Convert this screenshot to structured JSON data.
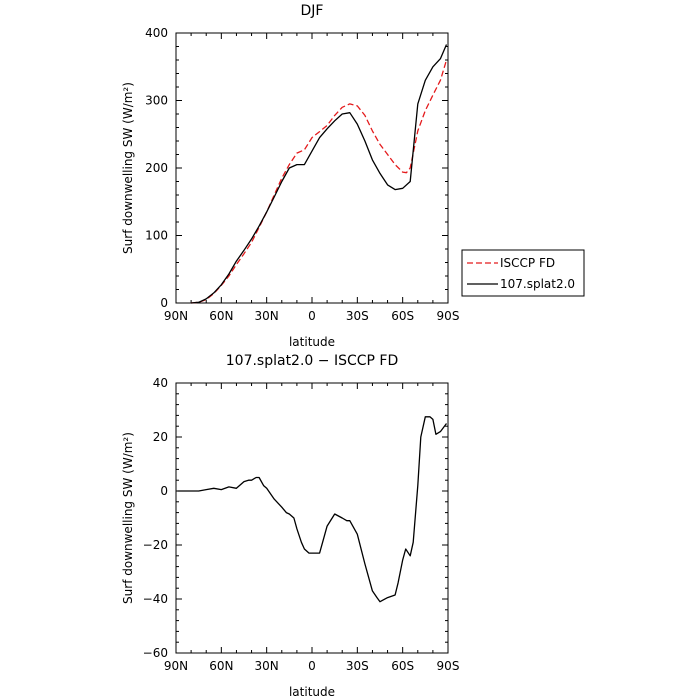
{
  "chart_data": [
    {
      "type": "line",
      "title": "DJF",
      "xlabel": "latitude",
      "ylabel": "Surf downwelling SW (W/m²)",
      "xlim": [
        90,
        -90
      ],
      "ylim": [
        0,
        400
      ],
      "x_ticks": [
        90,
        60,
        30,
        0,
        -30,
        -60,
        -90
      ],
      "x_tick_labels": [
        "90N",
        "60N",
        "30N",
        "0",
        "30S",
        "60S",
        "90S"
      ],
      "y_ticks": [
        0,
        100,
        200,
        300,
        400
      ],
      "y_tick_labels": [
        "0",
        "100",
        "200",
        "300",
        "400"
      ],
      "legend": {
        "placement": "right-outside"
      },
      "series": [
        {
          "name": "ISCCP FD",
          "color": "#e41a1c",
          "dash": "dashed",
          "x": [
            80,
            75,
            70,
            65,
            60,
            55,
            50,
            45,
            40,
            35,
            30,
            25,
            20,
            15,
            10,
            5,
            0,
            -5,
            -10,
            -15,
            -20,
            -25,
            -30,
            -35,
            -40,
            -45,
            -50,
            -55,
            -60,
            -62.5,
            -65,
            -70,
            -75,
            -80,
            -85,
            -89
          ],
          "y": [
            0,
            1,
            5,
            14,
            26,
            40,
            57,
            73,
            90,
            112,
            135,
            160,
            185,
            205,
            222,
            227,
            245,
            254,
            263,
            278,
            290,
            295,
            292,
            278,
            255,
            235,
            220,
            205,
            194,
            193,
            200,
            255,
            285,
            308,
            330,
            360
          ]
        },
        {
          "name": "107.splat2.0",
          "color": "#000000",
          "dash": "solid",
          "x": [
            80,
            75,
            70,
            65,
            60,
            55,
            50,
            45,
            40,
            35,
            30,
            25,
            20,
            15,
            10,
            5,
            0,
            -5,
            -10,
            -15,
            -20,
            -25,
            -30,
            -35,
            -40,
            -45,
            -50,
            -55,
            -60,
            -65,
            -70,
            -75,
            -80,
            -85,
            -89
          ],
          "y": [
            0,
            1,
            6,
            15,
            27,
            43,
            62,
            78,
            95,
            114,
            135,
            157,
            180,
            200,
            205,
            205,
            225,
            245,
            258,
            270,
            280,
            282,
            265,
            240,
            212,
            192,
            175,
            168,
            170,
            180,
            295,
            330,
            350,
            362,
            383
          ]
        }
      ]
    },
    {
      "type": "line",
      "title": "107.splat2.0 − ISCCP FD",
      "xlabel": "latitude",
      "ylabel": "Surf downwelling SW (W/m²)",
      "xlim": [
        90,
        -90
      ],
      "ylim": [
        -60,
        40
      ],
      "x_ticks": [
        90,
        60,
        30,
        0,
        -30,
        -60,
        -90
      ],
      "x_tick_labels": [
        "90N",
        "60N",
        "30N",
        "0",
        "30S",
        "60S",
        "90S"
      ],
      "y_ticks": [
        -60,
        -40,
        -20,
        0,
        20,
        40
      ],
      "y_tick_labels": [
        "−60",
        "−40",
        "−20",
        "0",
        "20",
        "40"
      ],
      "series": [
        {
          "color": "#000000",
          "dash": "solid",
          "x": [
            89,
            85,
            80,
            75,
            70,
            65,
            60,
            55,
            50,
            45,
            42,
            40,
            37,
            35,
            32,
            30,
            25,
            20,
            17,
            15,
            12,
            10,
            7,
            5,
            2,
            0,
            -2,
            -5,
            -7,
            -10,
            -15,
            -20,
            -23,
            -25,
            -30,
            -35,
            -37,
            -40,
            -43,
            -45,
            -50,
            -55,
            -57,
            -60,
            -62,
            -65,
            -67,
            -70,
            -72,
            -75,
            -78,
            -80,
            -82,
            -85,
            -89
          ],
          "y": [
            0,
            0,
            0,
            0,
            0.5,
            1,
            0.5,
            1.5,
            1,
            3.5,
            4,
            4,
            5,
            5,
            2,
            1,
            -3,
            -6,
            -8,
            -8.5,
            -10,
            -14,
            -19,
            -21.5,
            -23,
            -23,
            -23,
            -23,
            -19,
            -13,
            -8.5,
            -10,
            -11,
            -11,
            -16,
            -27,
            -31,
            -37,
            -39.5,
            -41,
            -39.5,
            -38.5,
            -34,
            -25.5,
            -21.5,
            -24,
            -19,
            2,
            20,
            27.5,
            27.5,
            26.5,
            21,
            22,
            25
          ]
        }
      ]
    }
  ]
}
